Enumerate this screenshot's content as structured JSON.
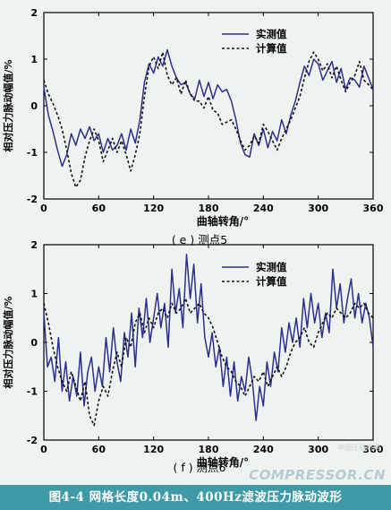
{
  "figure_caption": "图4-4  网格长度0.04m、400Hz滤波压力脉动波形",
  "watermark": "COMPRESSOR.CN",
  "watermark_sub": "中国压缩机网",
  "colors": {
    "measured": "#2b2f8f",
    "computed": "#111111",
    "caption_bg": "#3f9aa7"
  },
  "chart_data": [
    {
      "type": "line",
      "caption": "( e ) 测点5",
      "xlabel": "曲轴转角/°",
      "ylabel": "相对压力脉动幅值/%",
      "xlim": [
        0,
        360
      ],
      "ylim": [
        -2,
        2
      ],
      "xticks": [
        0,
        60,
        120,
        180,
        240,
        300,
        360
      ],
      "yticks": [
        -2,
        -1,
        0,
        1,
        2
      ],
      "grid": false,
      "legend_position": "top-right",
      "series": [
        {
          "name": "实测值",
          "style": "solid",
          "x": [
            0,
            5,
            10,
            15,
            20,
            25,
            30,
            35,
            40,
            45,
            50,
            55,
            60,
            65,
            70,
            75,
            80,
            85,
            90,
            95,
            100,
            105,
            110,
            115,
            120,
            125,
            130,
            135,
            140,
            145,
            150,
            155,
            160,
            165,
            170,
            175,
            180,
            185,
            190,
            195,
            200,
            205,
            210,
            215,
            220,
            225,
            230,
            235,
            240,
            245,
            250,
            255,
            260,
            265,
            270,
            275,
            280,
            285,
            290,
            295,
            300,
            305,
            310,
            315,
            320,
            325,
            330,
            335,
            340,
            345,
            350,
            355,
            360
          ],
          "values": [
            0.4,
            -0.2,
            -0.55,
            -0.95,
            -1.3,
            -1.05,
            -0.6,
            -0.85,
            -0.5,
            -0.7,
            -0.45,
            -0.75,
            -0.6,
            -1.0,
            -0.7,
            -0.95,
            -0.85,
            -0.6,
            -0.95,
            -0.5,
            -0.8,
            -0.3,
            0.5,
            0.9,
            0.7,
            1.05,
            0.85,
            1.2,
            0.85,
            0.6,
            0.45,
            0.5,
            0.25,
            0.15,
            0.55,
            0.2,
            0.5,
            0.15,
            0.45,
            0.3,
            0.35,
            0.1,
            -0.3,
            -0.8,
            -1.05,
            -1.1,
            -0.6,
            -0.85,
            -0.5,
            -0.9,
            -0.55,
            -0.75,
            -0.3,
            -0.6,
            -0.2,
            0.1,
            0.5,
            0.85,
            0.65,
            1.0,
            0.9,
            0.55,
            0.75,
            0.95,
            0.5,
            0.8,
            0.35,
            0.6,
            0.55,
            0.4,
            0.85,
            0.6,
            0.35
          ]
        },
        {
          "name": "计算值",
          "style": "dashed",
          "x": [
            0,
            5,
            10,
            15,
            20,
            25,
            30,
            35,
            40,
            45,
            50,
            55,
            60,
            65,
            70,
            75,
            80,
            85,
            90,
            95,
            100,
            105,
            110,
            115,
            120,
            125,
            130,
            135,
            140,
            145,
            150,
            155,
            160,
            165,
            170,
            175,
            180,
            185,
            190,
            195,
            200,
            205,
            210,
            215,
            220,
            225,
            230,
            235,
            240,
            245,
            250,
            255,
            260,
            265,
            270,
            275,
            280,
            285,
            290,
            295,
            300,
            305,
            310,
            315,
            320,
            325,
            330,
            335,
            340,
            345,
            350,
            355,
            360
          ],
          "values": [
            0.55,
            0.25,
            0.05,
            -0.2,
            -0.5,
            -0.95,
            -1.45,
            -1.75,
            -1.6,
            -1.1,
            -0.75,
            -0.5,
            -0.75,
            -1.2,
            -0.95,
            -0.7,
            -1.0,
            -0.75,
            -1.05,
            -1.4,
            -1.05,
            -0.6,
            0.2,
            0.85,
            1.05,
            0.8,
            1.15,
            0.65,
            0.45,
            0.6,
            0.25,
            0.55,
            0.25,
            0.1,
            0.1,
            -0.05,
            0.2,
            -0.1,
            -0.15,
            -0.4,
            -0.35,
            -0.3,
            -0.5,
            -0.75,
            -0.95,
            -0.85,
            -0.65,
            -0.8,
            -0.4,
            -0.55,
            -0.75,
            -0.95,
            -0.7,
            -0.5,
            -0.3,
            -0.05,
            0.2,
            0.6,
            0.95,
            1.15,
            1.0,
            0.75,
            0.9,
            0.6,
            0.85,
            0.55,
            0.3,
            0.5,
            0.65,
            0.95,
            0.55,
            0.45,
            0.35
          ]
        }
      ]
    },
    {
      "type": "line",
      "caption": "( f ) 测点6",
      "xlabel": "曲轴转角/°",
      "ylabel": "相对压力脉动幅值/%",
      "xlim": [
        0,
        360
      ],
      "ylim": [
        -2,
        2
      ],
      "xticks": [
        0,
        60,
        120,
        180,
        240,
        300,
        360
      ],
      "yticks": [
        -2,
        -1,
        0,
        1,
        2
      ],
      "grid": false,
      "legend_position": "top-right",
      "series": [
        {
          "name": "实测值",
          "style": "solid",
          "x": [
            0,
            4,
            8,
            12,
            16,
            20,
            24,
            28,
            32,
            36,
            40,
            44,
            48,
            52,
            56,
            60,
            64,
            68,
            72,
            76,
            80,
            84,
            88,
            92,
            96,
            100,
            104,
            108,
            112,
            116,
            120,
            124,
            128,
            132,
            136,
            140,
            144,
            148,
            152,
            156,
            160,
            164,
            168,
            172,
            176,
            180,
            184,
            188,
            192,
            196,
            200,
            204,
            208,
            212,
            216,
            220,
            224,
            228,
            232,
            236,
            240,
            244,
            248,
            252,
            256,
            260,
            264,
            268,
            272,
            276,
            280,
            284,
            288,
            292,
            296,
            300,
            304,
            308,
            312,
            316,
            320,
            324,
            328,
            332,
            336,
            340,
            344,
            348,
            352,
            356,
            360
          ],
          "values": [
            0.6,
            -0.5,
            -0.3,
            -0.8,
            0.1,
            -1.0,
            -0.4,
            -1.2,
            -0.7,
            -1.1,
            -0.2,
            -1.3,
            -0.6,
            -0.3,
            -1.0,
            -0.5,
            -0.9,
            0.1,
            -0.6,
            0.3,
            -0.4,
            -0.8,
            0.2,
            -0.3,
            0.6,
            -0.5,
            0.7,
            0.1,
            0.9,
            0.0,
            0.5,
            1.0,
            0.3,
            0.8,
            -0.1,
            1.5,
            0.6,
            1.1,
            0.3,
            1.8,
            0.9,
            1.6,
            0.4,
            1.2,
            0.1,
            -0.3,
            0.2,
            -0.5,
            -0.1,
            -0.9,
            -0.3,
            -1.1,
            -0.4,
            -1.2,
            -0.7,
            -1.0,
            -0.3,
            -0.8,
            -1.6,
            -0.9,
            -1.3,
            -0.4,
            -0.9,
            -0.2,
            -0.6,
            0.3,
            -0.2,
            0.4,
            0.0,
            0.5,
            -0.1,
            0.9,
            0.3,
            1.0,
            0.4,
            0.8,
            0.1,
            0.6,
            0.2,
            1.5,
            0.7,
            1.2,
            0.4,
            0.9,
            1.3,
            0.5,
            1.0,
            0.4,
            0.8,
            0.5,
            -0.1
          ]
        },
        {
          "name": "计算值",
          "style": "dashed",
          "x": [
            0,
            5,
            10,
            15,
            20,
            25,
            30,
            35,
            40,
            45,
            50,
            55,
            60,
            65,
            70,
            75,
            80,
            85,
            90,
            95,
            100,
            105,
            110,
            115,
            120,
            125,
            130,
            135,
            140,
            145,
            150,
            155,
            160,
            165,
            170,
            175,
            180,
            185,
            190,
            195,
            200,
            205,
            210,
            215,
            220,
            225,
            230,
            235,
            240,
            245,
            250,
            255,
            260,
            265,
            270,
            275,
            280,
            285,
            290,
            295,
            300,
            305,
            310,
            315,
            320,
            325,
            330,
            335,
            340,
            345,
            350,
            355,
            360
          ],
          "values": [
            0.8,
            0.4,
            -0.1,
            -0.5,
            -0.8,
            -1.0,
            -0.6,
            -0.9,
            -1.2,
            -0.8,
            -1.5,
            -1.7,
            -1.2,
            -0.9,
            -1.1,
            -0.6,
            -0.2,
            -0.5,
            0.1,
            -0.1,
            0.4,
            0.6,
            0.2,
            0.5,
            0.3,
            0.6,
            0.7,
            0.5,
            0.8,
            0.6,
            0.7,
            0.9,
            0.6,
            0.7,
            0.8,
            0.6,
            0.5,
            0.3,
            0.0,
            -0.3,
            -0.5,
            -0.6,
            -0.8,
            -0.9,
            -1.1,
            -0.9,
            -0.7,
            -0.8,
            -0.6,
            -0.9,
            -0.7,
            -0.5,
            -0.7,
            -0.5,
            -0.2,
            0.0,
            0.1,
            0.3,
            0.0,
            -0.1,
            0.2,
            0.4,
            0.6,
            0.5,
            0.7,
            0.6,
            0.5,
            0.6,
            0.8,
            0.7,
            0.8,
            0.6,
            0.5
          ]
        }
      ]
    }
  ]
}
